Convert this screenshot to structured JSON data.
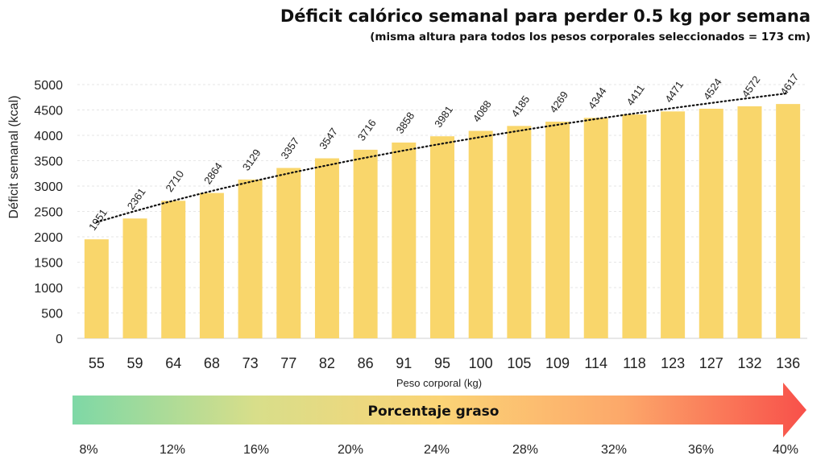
{
  "chart_data": {
    "type": "bar",
    "title": "Déficit calórico semanal para perder 0.5 kg por semana",
    "subtitle": "(misma altura para todos los pesos corporales seleccionados = 173 cm)",
    "xlabel": "Peso corporal (kg)",
    "ylabel": "Déficit semanal (kcal)",
    "ylim": [
      0,
      5000
    ],
    "yticks": [
      0,
      500,
      1000,
      1500,
      2000,
      2500,
      3000,
      3500,
      4000,
      4500,
      5000
    ],
    "grid": true,
    "categories": [
      "55",
      "59",
      "64",
      "68",
      "73",
      "77",
      "82",
      "86",
      "91",
      "95",
      "100",
      "105",
      "109",
      "114",
      "118",
      "123",
      "127",
      "132",
      "136"
    ],
    "values": [
      1951,
      2361,
      2710,
      2864,
      3129,
      3357,
      3547,
      3716,
      3858,
      3981,
      4088,
      4185,
      4269,
      4344,
      4411,
      4471,
      4524,
      4572,
      4617
    ],
    "trendline": "logarithmic, dotted",
    "bar_color": "#F9D66B",
    "fat_scale": {
      "label": "Porcentaje graso",
      "ticks": [
        "8%",
        "12%",
        "16%",
        "20%",
        "24%",
        "28%",
        "32%",
        "36%",
        "40%"
      ],
      "gradient": [
        "#7ED8A6",
        "#D8DE8A",
        "#FBD476",
        "#FCA86A",
        "#F8504A"
      ]
    }
  }
}
